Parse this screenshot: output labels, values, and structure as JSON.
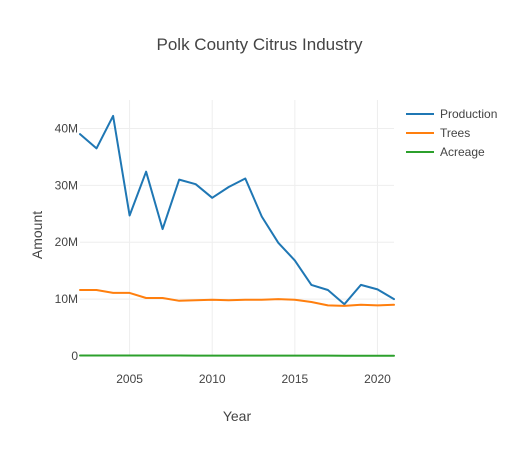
{
  "chart_data": {
    "type": "line",
    "title": "Polk County Citrus Industry",
    "xlabel": "Year",
    "ylabel": "Amount",
    "x": [
      2002,
      2003,
      2004,
      2005,
      2006,
      2007,
      2008,
      2009,
      2010,
      2011,
      2012,
      2013,
      2014,
      2015,
      2016,
      2017,
      2018,
      2019,
      2020,
      2021
    ],
    "xlim": [
      2002,
      2021
    ],
    "ylim": [
      0,
      45000000
    ],
    "x_ticks": [
      2005,
      2010,
      2015,
      2020
    ],
    "x_tick_labels": [
      "2005",
      "2010",
      "2015",
      "2020"
    ],
    "y_ticks": [
      0,
      10000000,
      20000000,
      30000000,
      40000000
    ],
    "y_tick_labels": [
      "0",
      "10M",
      "20M",
      "30M",
      "40M"
    ],
    "grid": true,
    "legend_position": "top-right",
    "series": [
      {
        "name": "Production",
        "color": "#1f77b4",
        "values": [
          39000000,
          36500000,
          42200000,
          24700000,
          32400000,
          22300000,
          31000000,
          30200000,
          27800000,
          29700000,
          31200000,
          24500000,
          19900000,
          16800000,
          12500000,
          11600000,
          9100000,
          12500000,
          11700000,
          10000000
        ]
      },
      {
        "name": "Trees",
        "color": "#ff7f0e",
        "values": [
          11600000,
          11600000,
          11100000,
          11100000,
          10200000,
          10200000,
          9700000,
          9800000,
          9900000,
          9800000,
          9900000,
          9900000,
          10000000,
          9900000,
          9500000,
          8900000,
          8800000,
          9000000,
          8900000,
          9000000
        ]
      },
      {
        "name": "Acreage",
        "color": "#2ca02c",
        "values": [
          90000,
          89000,
          88000,
          86000,
          84000,
          82000,
          80000,
          78000,
          76000,
          74000,
          72000,
          70000,
          68000,
          66000,
          64000,
          62000,
          60000,
          58000,
          56000,
          54000
        ]
      }
    ]
  }
}
